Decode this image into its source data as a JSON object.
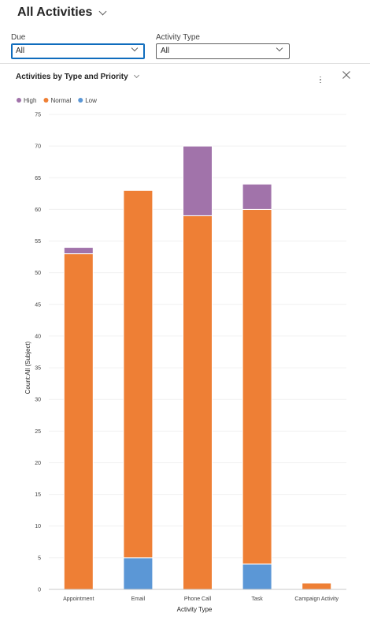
{
  "view": {
    "title": "All Activities"
  },
  "filters": [
    {
      "label": "Due",
      "value": "All"
    },
    {
      "label": "Activity Type",
      "value": "All"
    }
  ],
  "chart_title": "Activities by Type and Priority",
  "chart_data": {
    "type": "bar",
    "stacked": true,
    "categories": [
      "Appointment",
      "Email",
      "Phone Call",
      "Task",
      "Campaign Activity"
    ],
    "series": [
      {
        "name": "High",
        "color": "#a173aa",
        "values": [
          1,
          0,
          11,
          4,
          0
        ]
      },
      {
        "name": "Normal",
        "color": "#ee7f35",
        "values": [
          53,
          58,
          59,
          56,
          1
        ]
      },
      {
        "name": "Low",
        "color": "#5b97d6",
        "values": [
          0,
          5,
          0,
          4,
          0
        ]
      }
    ],
    "xlabel": "Activity Type",
    "ylabel": "Count:All (Subject)",
    "ylim": [
      0,
      75
    ],
    "yticks": [
      0,
      5,
      10,
      15,
      20,
      25,
      30,
      35,
      40,
      45,
      50,
      55,
      60,
      65,
      70,
      75
    ],
    "legend_position": "top-left",
    "grid": true
  }
}
